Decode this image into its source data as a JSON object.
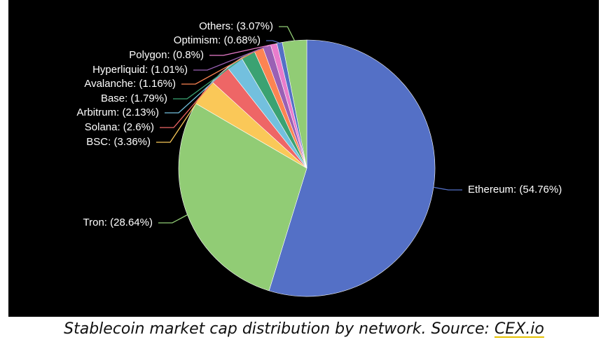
{
  "chart_data": {
    "type": "pie",
    "categories": [
      "Ethereum: (54.76%)",
      "Tron: (28.64%)",
      "BSC: (3.36%)",
      "Solana: (2.6%)",
      "Arbitrum: (2.13%)",
      "Base: (1.79%)",
      "Avalanche: (1.16%)",
      "Hyperliquid: (1.01%)",
      "Polygon: (0.8%)",
      "Optimism: (0.68%)",
      "Others: (3.07%)"
    ],
    "values": [
      54.76,
      28.64,
      3.36,
      2.6,
      2.13,
      1.79,
      1.16,
      1.01,
      0.8,
      0.68,
      3.07
    ],
    "colors": [
      "#5470c6",
      "#91cc75",
      "#fac858",
      "#ee6666",
      "#73c0de",
      "#3ba272",
      "#fc8452",
      "#9a60b4",
      "#ea7ccc",
      "#5470c6",
      "#91cc75"
    ],
    "caption": "Stablecoin market cap distribution by network. Source: ",
    "source": "CEX.io"
  }
}
